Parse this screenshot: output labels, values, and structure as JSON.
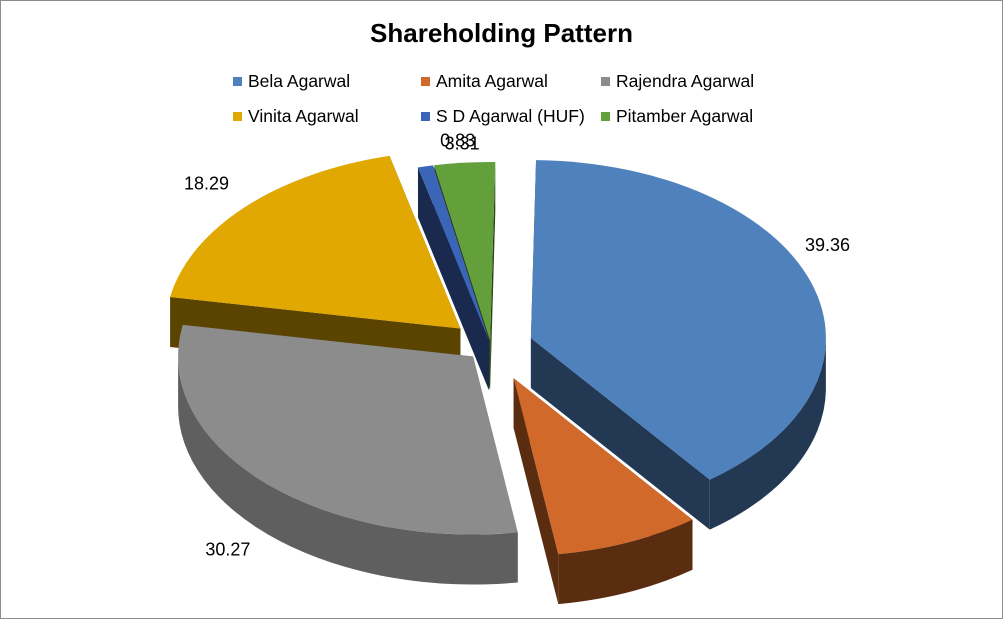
{
  "chart_data": {
    "type": "pie",
    "variant": "3d-exploded",
    "title": "Shareholding Pattern",
    "legend_position": "top",
    "slices": [
      {
        "label": "Bela Agarwal",
        "value": 39.36,
        "color": "#4f81bd",
        "side_color": "#223853"
      },
      {
        "label": "Amita Agarwal",
        "value": 7.95,
        "color": "#d1692a",
        "side_color": "#5a2d10"
      },
      {
        "label": "Rajendra Agarwal",
        "value": 30.27,
        "color": "#8c8c8c",
        "side_color": "#5f5f5f"
      },
      {
        "label": "Vinita Agarwal",
        "value": 18.29,
        "color": "#e0a800",
        "side_color": "#5b4400"
      },
      {
        "label": "S D Agarwal (HUF)",
        "value": 0.83,
        "color": "#3b66b8",
        "side_color": "#1a2a4e"
      },
      {
        "label": "Pitamber Agarwal",
        "value": 3.31,
        "color": "#63a03c",
        "side_color": "#2a4418"
      }
    ]
  }
}
